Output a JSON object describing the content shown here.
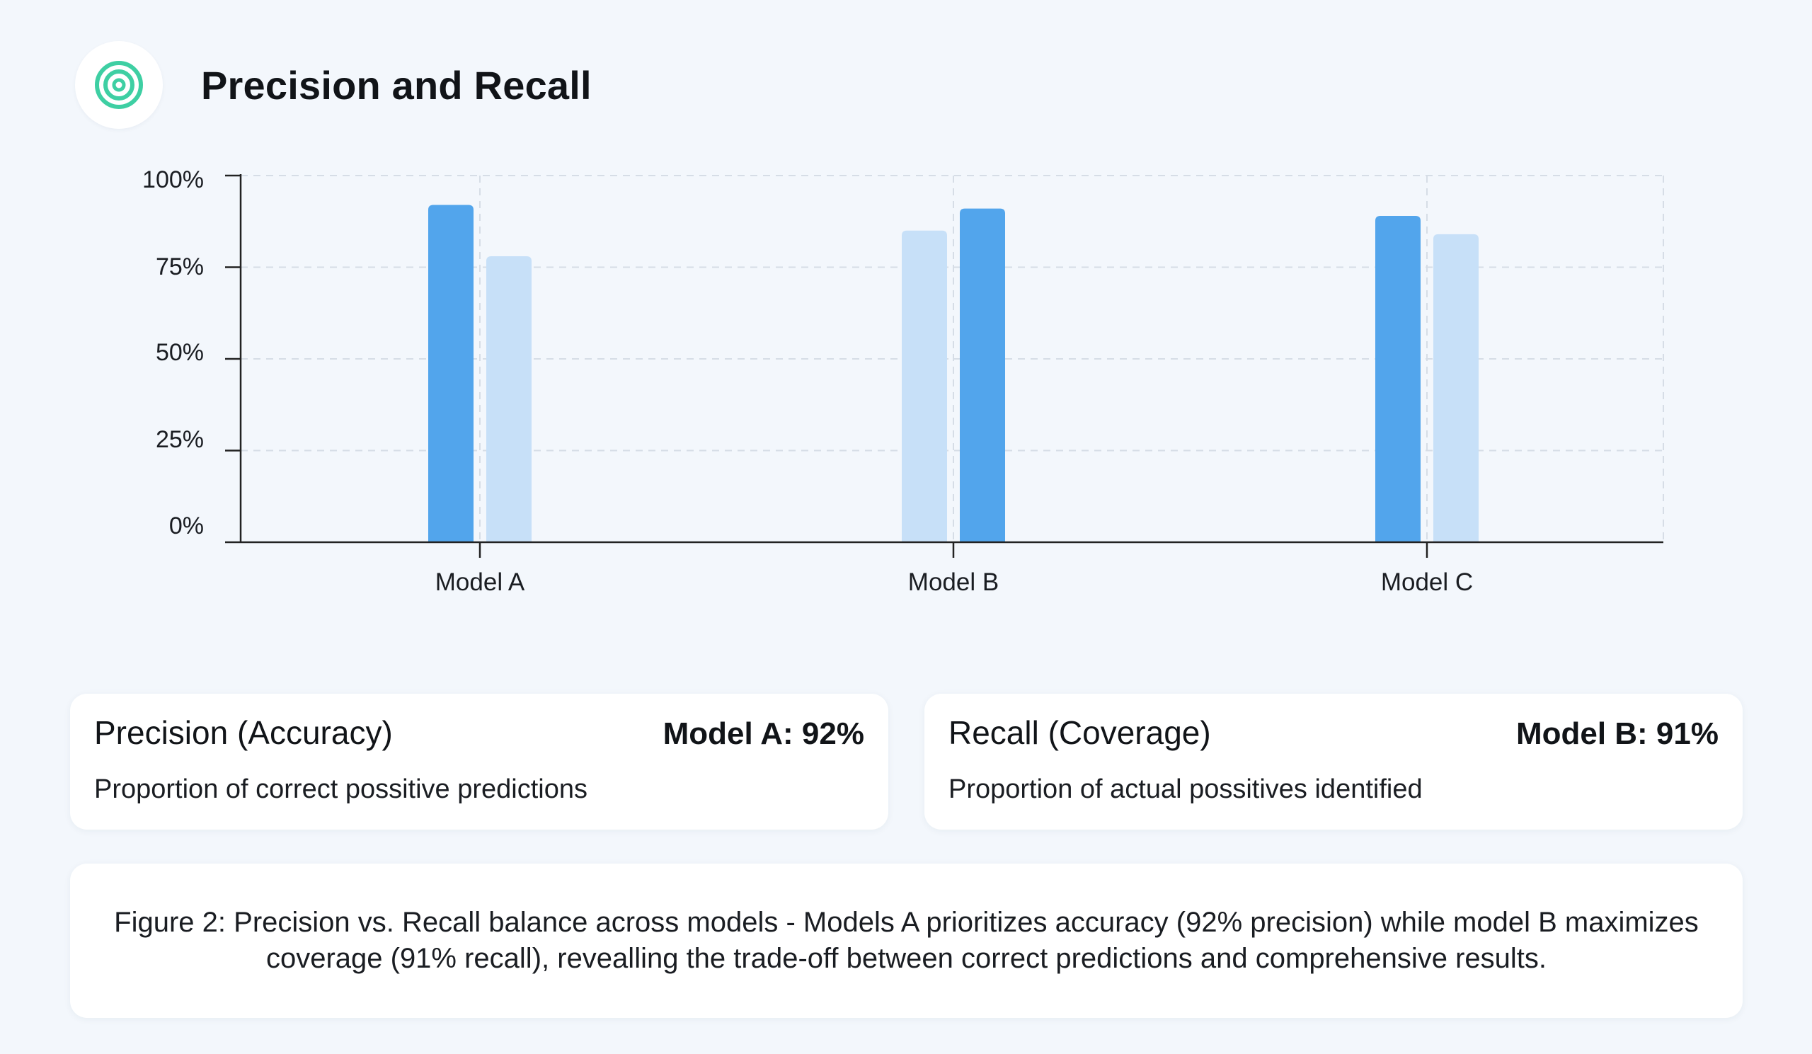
{
  "header": {
    "title": "Precision and Recall",
    "icon": "target-icon",
    "icon_color": "#3ecfa3"
  },
  "chart_data": {
    "type": "bar",
    "title": "Precision and Recall",
    "xlabel": "",
    "ylabel": "",
    "categories": [
      "Model A",
      "Model B",
      "Model C"
    ],
    "series": [
      {
        "values": [
          92,
          85,
          89
        ]
      },
      {
        "values": [
          78,
          91,
          84
        ]
      }
    ],
    "bar_colors": [
      [
        "#52a5ec",
        "#c7e0f8"
      ],
      [
        "#c7e0f8",
        "#52a5ec"
      ],
      [
        "#52a5ec",
        "#c7e0f8"
      ]
    ],
    "ylim": [
      0,
      100
    ],
    "yticks": [
      0,
      25,
      50,
      75,
      100
    ],
    "ytick_labels": [
      "0%",
      "25%",
      "50%",
      "75%",
      "100%"
    ],
    "grid": true,
    "legend": "none"
  },
  "cards": {
    "precision": {
      "label": "Precision (Accuracy)",
      "value": "Model A: 92%",
      "description": "Proportion of correct possitive predictions"
    },
    "recall": {
      "label": "Recall (Coverage)",
      "value": "Model B: 91%",
      "description": "Proportion of actual possitives identified"
    }
  },
  "caption": "Figure 2: Precision vs. Recall balance across models - Models A prioritizes accuracy (92% precision) while model B maximizes coverage (91% recall), revealling the trade-off between correct predictions and comprehensive results."
}
